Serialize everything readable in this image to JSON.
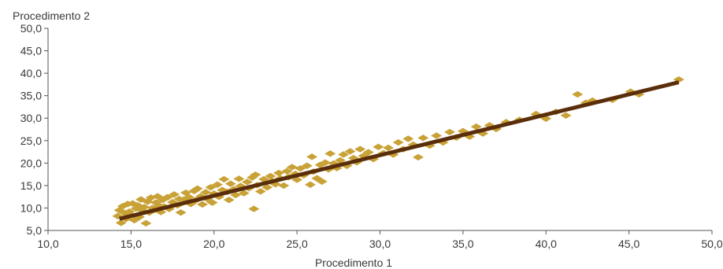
{
  "chart_data": {
    "type": "scatter",
    "title": "",
    "xlabel": "Procedimento 1",
    "ylabel": "Procedimento 2",
    "xlim": [
      10,
      50
    ],
    "ylim": [
      5,
      50
    ],
    "x_ticks": [
      10,
      15,
      20,
      25,
      30,
      35,
      40,
      45,
      50
    ],
    "x_tick_labels": [
      "10,0",
      "15,0",
      "20,0",
      "25,0",
      "30,0",
      "35,0",
      "40,0",
      "45,0",
      "50,0"
    ],
    "y_ticks": [
      5,
      10,
      15,
      20,
      25,
      30,
      35,
      40,
      45,
      50
    ],
    "y_tick_labels": [
      "5,0",
      "10,0",
      "15,0",
      "20,0",
      "25,0",
      "30,0",
      "35,0",
      "40,0",
      "45,0",
      "50,0"
    ],
    "grid": false,
    "legend": "none",
    "colors": {
      "points": "#C9A237",
      "trend_line": "#5A2E0A",
      "axis": "#555555"
    },
    "marker": "diamond",
    "trend_line": {
      "x": [
        14.3,
        48.0
      ],
      "y": [
        7.6,
        38.0
      ]
    },
    "series": [
      {
        "points": [
          [
            14.2,
            8.2
          ],
          [
            14.3,
            9.5
          ],
          [
            14.4,
            6.7
          ],
          [
            14.5,
            10.4
          ],
          [
            14.6,
            8.9
          ],
          [
            14.7,
            7.6
          ],
          [
            14.8,
            10.9
          ],
          [
            14.9,
            9.2
          ],
          [
            15.0,
            8.4
          ],
          [
            15.1,
            11.0
          ],
          [
            15.2,
            7.3
          ],
          [
            15.3,
            9.9
          ],
          [
            15.4,
            10.6
          ],
          [
            15.5,
            8.0
          ],
          [
            15.6,
            11.9
          ],
          [
            15.7,
            9.4
          ],
          [
            15.8,
            10.2
          ],
          [
            15.9,
            6.6
          ],
          [
            16.0,
            11.4
          ],
          [
            16.1,
            9.0
          ],
          [
            16.2,
            12.3
          ],
          [
            16.3,
            10.0
          ],
          [
            16.4,
            9.6
          ],
          [
            16.5,
            11.2
          ],
          [
            16.6,
            12.6
          ],
          [
            16.7,
            10.5
          ],
          [
            16.8,
            9.1
          ],
          [
            16.9,
            11.8
          ],
          [
            17.0,
            10.3
          ],
          [
            17.2,
            12.4
          ],
          [
            17.3,
            9.8
          ],
          [
            17.5,
            11.3
          ],
          [
            17.6,
            13.0
          ],
          [
            17.8,
            10.6
          ],
          [
            17.9,
            12.0
          ],
          [
            18.0,
            9.0
          ],
          [
            18.2,
            11.9
          ],
          [
            18.3,
            13.4
          ],
          [
            18.5,
            12.4
          ],
          [
            18.6,
            10.9
          ],
          [
            18.8,
            13.8
          ],
          [
            18.9,
            11.7
          ],
          [
            19.0,
            14.3
          ],
          [
            19.2,
            12.6
          ],
          [
            19.3,
            10.8
          ],
          [
            19.5,
            13.5
          ],
          [
            19.6,
            12.0
          ],
          [
            19.8,
            14.6
          ],
          [
            19.9,
            11.2
          ],
          [
            20.0,
            13.2
          ],
          [
            20.2,
            15.2
          ],
          [
            20.3,
            12.5
          ],
          [
            20.5,
            14.0
          ],
          [
            20.6,
            16.4
          ],
          [
            20.8,
            13.6
          ],
          [
            20.9,
            11.8
          ],
          [
            21.0,
            15.4
          ],
          [
            21.2,
            14.2
          ],
          [
            21.3,
            12.9
          ],
          [
            21.5,
            16.5
          ],
          [
            21.6,
            14.9
          ],
          [
            21.8,
            13.3
          ],
          [
            22.0,
            15.8
          ],
          [
            22.1,
            14.4
          ],
          [
            22.3,
            16.8
          ],
          [
            22.4,
            9.8
          ],
          [
            22.5,
            17.4
          ],
          [
            22.6,
            15.1
          ],
          [
            22.8,
            13.7
          ],
          [
            23.0,
            16.4
          ],
          [
            23.2,
            14.6
          ],
          [
            23.4,
            17.1
          ],
          [
            23.5,
            16.0
          ],
          [
            23.7,
            15.3
          ],
          [
            23.9,
            17.8
          ],
          [
            24.0,
            16.6
          ],
          [
            24.2,
            15.0
          ],
          [
            24.4,
            18.2
          ],
          [
            24.5,
            16.9
          ],
          [
            24.7,
            19.1
          ],
          [
            24.9,
            17.6
          ],
          [
            25.0,
            16.3
          ],
          [
            25.2,
            18.8
          ],
          [
            25.4,
            17.3
          ],
          [
            25.6,
            19.4
          ],
          [
            25.8,
            15.2
          ],
          [
            25.9,
            21.4
          ],
          [
            26.0,
            18.1
          ],
          [
            26.2,
            16.6
          ],
          [
            26.4,
            19.6
          ],
          [
            26.5,
            15.9
          ],
          [
            26.7,
            20.1
          ],
          [
            26.9,
            18.6
          ],
          [
            27.0,
            22.1
          ],
          [
            27.2,
            19.9
          ],
          [
            27.4,
            18.9
          ],
          [
            27.6,
            20.6
          ],
          [
            27.8,
            21.9
          ],
          [
            28.0,
            19.4
          ],
          [
            28.2,
            22.6
          ],
          [
            28.4,
            21.1
          ],
          [
            28.6,
            20.2
          ],
          [
            28.8,
            23.1
          ],
          [
            29.0,
            21.6
          ],
          [
            29.3,
            22.4
          ],
          [
            29.6,
            20.9
          ],
          [
            29.9,
            23.6
          ],
          [
            30.2,
            22.2
          ],
          [
            30.5,
            23.4
          ],
          [
            30.8,
            21.9
          ],
          [
            31.1,
            24.6
          ],
          [
            31.4,
            23.1
          ],
          [
            31.7,
            25.4
          ],
          [
            32.0,
            24.1
          ],
          [
            32.3,
            21.3
          ],
          [
            32.6,
            25.6
          ],
          [
            33.0,
            23.9
          ],
          [
            33.4,
            26.1
          ],
          [
            33.8,
            24.6
          ],
          [
            34.2,
            26.9
          ],
          [
            34.6,
            25.7
          ],
          [
            35.0,
            27.1
          ],
          [
            35.4,
            25.9
          ],
          [
            35.8,
            28.1
          ],
          [
            36.2,
            26.6
          ],
          [
            36.6,
            28.4
          ],
          [
            37.0,
            27.6
          ],
          [
            37.6,
            29.1
          ],
          [
            38.4,
            29.6
          ],
          [
            39.4,
            30.9
          ],
          [
            40.0,
            29.9
          ],
          [
            40.6,
            31.4
          ],
          [
            41.2,
            30.6
          ],
          [
            41.9,
            35.3
          ],
          [
            42.4,
            33.4
          ],
          [
            42.8,
            33.9
          ],
          [
            44.0,
            34.1
          ],
          [
            45.1,
            35.9
          ],
          [
            45.6,
            35.3
          ],
          [
            48.0,
            38.6
          ]
        ]
      }
    ]
  }
}
